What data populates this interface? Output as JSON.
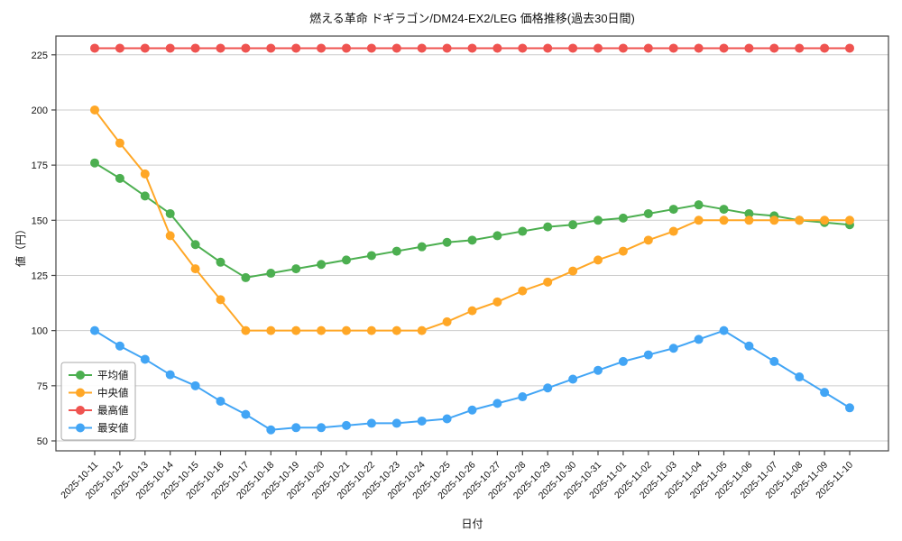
{
  "page": {
    "background": "#ffffff"
  },
  "chart_data": {
    "type": "line",
    "title": "燃える革命 ドギラゴン/DM24-EX2/LEG 価格推移(過去30日間)",
    "xlabel": "日付",
    "ylabel": "値（円）",
    "x": [
      "2025-10-11",
      "2025-10-12",
      "2025-10-13",
      "2025-10-14",
      "2025-10-15",
      "2025-10-16",
      "2025-10-17",
      "2025-10-18",
      "2025-10-19",
      "2025-10-20",
      "2025-10-21",
      "2025-10-22",
      "2025-10-23",
      "2025-10-24",
      "2025-10-25",
      "2025-10-26",
      "2025-10-27",
      "2025-10-28",
      "2025-10-29",
      "2025-10-30",
      "2025-10-31",
      "2025-11-01",
      "2025-11-02",
      "2025-11-03",
      "2025-11-04",
      "2025-11-05",
      "2025-11-06",
      "2025-11-07",
      "2025-11-08",
      "2025-11-09",
      "2025-11-10"
    ],
    "yticks": [
      50,
      75,
      100,
      125,
      150,
      175,
      200,
      225
    ],
    "ylim": [
      45.5,
      233.5
    ],
    "grid": "horizontal",
    "grid_color": "#cccccc",
    "axis_color": "#444444",
    "legend_position": "lower-left",
    "series": [
      {
        "key": "average",
        "name": "平均値",
        "color": "#4caf50",
        "values": [
          176,
          169,
          161,
          153,
          139,
          131,
          124,
          126,
          128,
          130,
          132,
          134,
          136,
          138,
          140,
          141,
          143,
          145,
          147,
          148,
          150,
          151,
          153,
          155,
          157,
          155,
          153,
          152,
          150,
          149,
          148
        ]
      },
      {
        "key": "median",
        "name": "中央値",
        "color": "#ffa726",
        "values": [
          200,
          185,
          171,
          143,
          128,
          114,
          100,
          100,
          100,
          100,
          100,
          100,
          100,
          100,
          104,
          109,
          113,
          118,
          122,
          127,
          132,
          136,
          141,
          145,
          150,
          150,
          150,
          150,
          150,
          150,
          150
        ]
      },
      {
        "key": "max",
        "name": "最高値",
        "color": "#ef5350",
        "values": [
          228,
          228,
          228,
          228,
          228,
          228,
          228,
          228,
          228,
          228,
          228,
          228,
          228,
          228,
          228,
          228,
          228,
          228,
          228,
          228,
          228,
          228,
          228,
          228,
          228,
          228,
          228,
          228,
          228,
          228,
          228
        ]
      },
      {
        "key": "min",
        "name": "最安値",
        "color": "#42a5f5",
        "values": [
          100,
          93,
          87,
          80,
          75,
          68,
          62,
          55,
          56,
          56,
          57,
          58,
          58,
          59,
          60,
          64,
          67,
          70,
          74,
          78,
          82,
          86,
          89,
          92,
          96,
          100,
          93,
          86,
          79,
          72,
          65
        ]
      }
    ]
  }
}
